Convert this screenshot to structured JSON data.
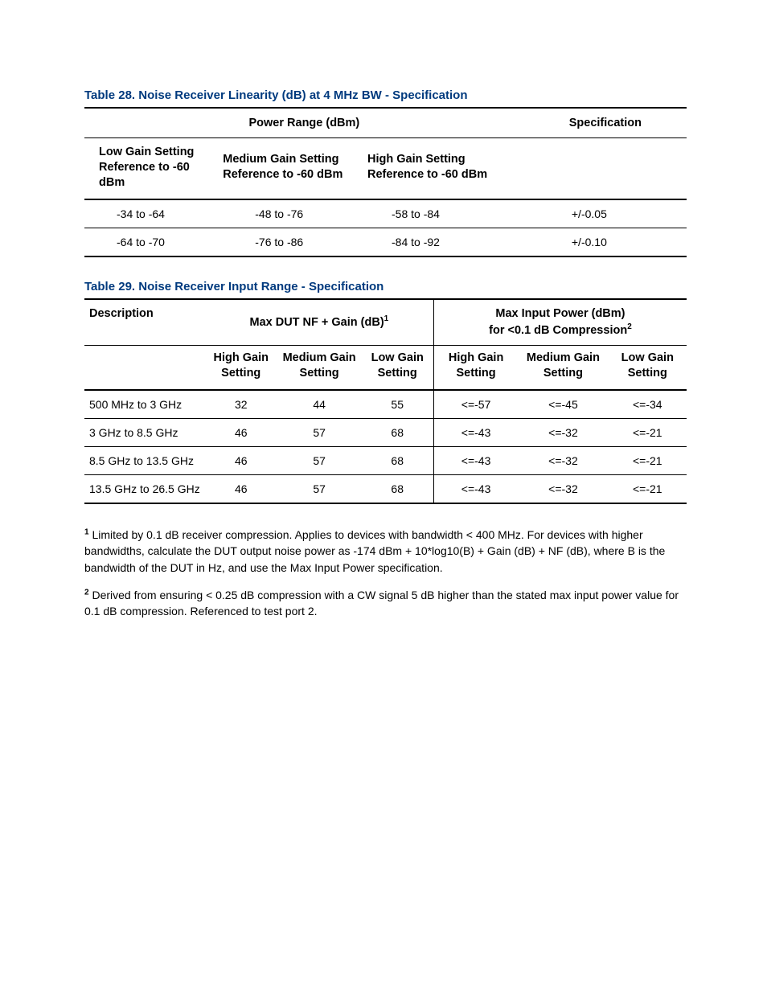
{
  "table28": {
    "title": "Table 28.  Noise Receiver Linearity (dB) at 4 MHz BW - Specification",
    "header_power": "Power Range (dBm)",
    "header_spec": "Specification",
    "sub_low_1": "Low Gain Setting",
    "sub_low_2": "Reference to -60 dBm",
    "sub_med_1": "Medium Gain Setting",
    "sub_med_2": "Reference to -60 dBm",
    "sub_high_1": "High Gain Setting",
    "sub_high_2": "Reference to -60 dBm",
    "rows": [
      {
        "low": "-34 to -64",
        "med": "-48 to -76",
        "high": "-58 to -84",
        "spec": "+/-0.05"
      },
      {
        "low": "-64 to -70",
        "med": "-76 to -86",
        "high": "-84 to -92",
        "spec": "+/-0.10"
      }
    ]
  },
  "table29": {
    "title": "Table 29.  Noise Receiver Input Range - Specification",
    "header_desc": "Description",
    "header_nfgain": "Max DUT NF + Gain (dB)",
    "header_maxinput_1": "Max Input Power (dBm)",
    "header_maxinput_2": "for <0.1 dB Compression",
    "sub_high": "High Gain Setting",
    "sub_med": "Medium Gain Setting",
    "sub_low": "Low Gain Setting",
    "rows": [
      {
        "desc": "500 MHz to 3 GHz",
        "nf_high": "32",
        "nf_med": "44",
        "nf_low": "55",
        "ip_high": "<=-57",
        "ip_med": "<=-45",
        "ip_low": "<=-34"
      },
      {
        "desc": "3 GHz to 8.5 GHz",
        "nf_high": "46",
        "nf_med": "57",
        "nf_low": "68",
        "ip_high": "<=-43",
        "ip_med": "<=-32",
        "ip_low": "<=-21"
      },
      {
        "desc": "8.5 GHz to 13.5 GHz",
        "nf_high": "46",
        "nf_med": "57",
        "nf_low": "68",
        "ip_high": "<=-43",
        "ip_med": "<=-32",
        "ip_low": "<=-21"
      },
      {
        "desc": "13.5 GHz to 26.5 GHz",
        "nf_high": "46",
        "nf_med": "57",
        "nf_low": "68",
        "ip_high": "<=-43",
        "ip_med": "<=-32",
        "ip_low": "<=-21"
      }
    ]
  },
  "footnote1": " Limited by 0.1 dB receiver compression. Applies to devices with bandwidth < 400 MHz. For devices with higher bandwidths, calculate the DUT output noise power as -174 dBm + 10*log10(B) + Gain (dB) + NF (dB), where B is the bandwidth of the DUT in Hz, and use the Max Input Power specification.",
  "footnote2": " Derived from ensuring < 0.25 dB compression with a CW signal 5 dB higher than the stated max input power value for 0.1 dB compression. Referenced to test port 2.",
  "sup1": "1",
  "sup2": "2",
  "colors": {
    "title_color": "#003a7e",
    "text_color": "#000000",
    "background": "#ffffff",
    "border": "#000000"
  },
  "col_widths_t28": [
    "23%",
    "24%",
    "26%",
    "27%"
  ],
  "col_widths_t29": [
    "20%",
    "12%",
    "14%",
    "12%",
    "14%",
    "15%",
    "13%"
  ]
}
